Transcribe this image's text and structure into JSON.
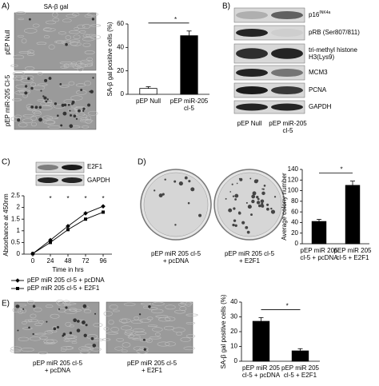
{
  "panels": {
    "a": {
      "label": "A)",
      "title": "SA-β gal",
      "image_labels": [
        "pEP Null",
        "pEP miR-205 Cl-5"
      ]
    },
    "b": {
      "label": "B)",
      "rows": [
        {
          "text": "p16",
          "sup": "INK4a"
        },
        {
          "text": "pRB (Ser807/811)"
        },
        {
          "text": "tri-methyl histone\nH3(Lys9)"
        },
        {
          "text": "MCM3"
        },
        {
          "text": "PCNA"
        },
        {
          "text": "GAPDH"
        }
      ],
      "lanes": [
        "pEP Null",
        "pEP miR-205\ncl-5"
      ]
    },
    "c": {
      "label": "C)",
      "blot_rows": [
        "E2F1",
        "GAPDH"
      ]
    },
    "d": {
      "label": "D)",
      "image_labels": [
        "pEP miR 205 cl-5\n+ pcDNA",
        "pEP miR 205 cl-5\n+ E2F1"
      ]
    },
    "e": {
      "label": "E)",
      "image_labels": [
        "pEP miR 205 cl-5\n+ pcDNA",
        "pEP miR 205 cl-5\n+ E2F1"
      ]
    }
  },
  "chart_data": [
    {
      "type": "bar",
      "ylabel": "SA-β gal positive cells (%)",
      "categories": [
        "pEP Null",
        "pEP miR-205\ncl-5"
      ],
      "values": [
        5,
        50
      ],
      "errors": [
        1.5,
        4
      ],
      "colors": [
        "#ffffff",
        "#000000"
      ],
      "ylim": [
        0,
        60
      ],
      "yticks": [
        0,
        20,
        40,
        60
      ],
      "annotation": "*"
    },
    {
      "type": "line",
      "ylabel": "Absorbance at 450nm",
      "xlabel": "Time in hrs",
      "x": [
        0,
        24,
        48,
        72,
        96
      ],
      "xlim": [
        -12,
        108
      ],
      "xticks": [
        0,
        24,
        48,
        72,
        96
      ],
      "ylim": [
        0,
        2.5
      ],
      "yticks": [
        0,
        0.5,
        1,
        1.5,
        2,
        2.5
      ],
      "series": [
        {
          "name": "pEP miR 205 cl-5 + pcDNA",
          "color": "#000000",
          "marker": "diamond",
          "values": [
            0.02,
            0.6,
            1.2,
            1.75,
            2.05
          ]
        },
        {
          "name": "pEP miR 205 cl-5 + E2F1",
          "color": "#000000",
          "marker": "square",
          "values": [
            0.02,
            0.5,
            1.05,
            1.5,
            1.8
          ]
        }
      ],
      "annotations": [
        {
          "text": "*",
          "x": 24
        },
        {
          "text": "*",
          "x": 48
        },
        {
          "text": "*",
          "x": 72
        },
        {
          "text": "*",
          "x": 96
        }
      ]
    },
    {
      "type": "bar",
      "ylabel": "Average colony number",
      "categories": [
        "pEP miR 205\ncl-5 + pcDNA",
        "pEP miR 205\ncl-5 + E2F1"
      ],
      "values": [
        42,
        110
      ],
      "errors": [
        4,
        8
      ],
      "colors": [
        "#000000",
        "#000000"
      ],
      "ylim": [
        0,
        140
      ],
      "yticks": [
        0,
        20,
        40,
        60,
        80,
        100,
        120,
        140
      ],
      "annotation": "*"
    },
    {
      "type": "bar",
      "ylabel": "SA-β gal positive cells (%)",
      "categories": [
        "pEP miR 205\ncl-5 + pcDNA",
        "pEP miR 205\ncl-5 + E2F1"
      ],
      "values": [
        27,
        7
      ],
      "errors": [
        2.5,
        1.5
      ],
      "colors": [
        "#000000",
        "#000000"
      ],
      "ylim": [
        0,
        40
      ],
      "yticks": [
        0,
        10,
        20,
        30,
        40
      ],
      "annotation": "*"
    }
  ]
}
